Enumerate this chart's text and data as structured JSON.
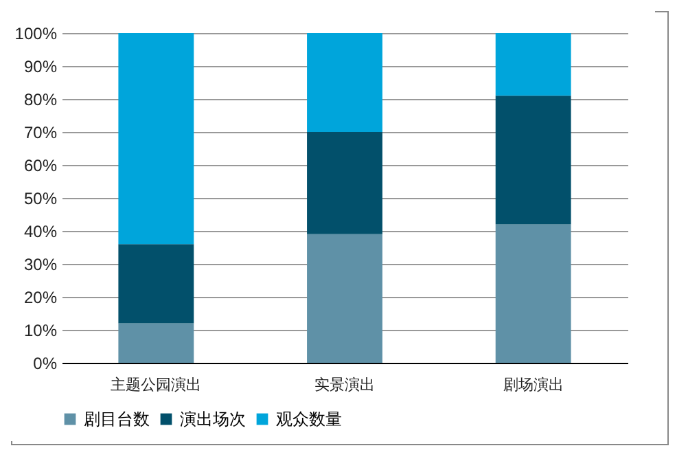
{
  "chart_data": {
    "type": "bar",
    "stacked": true,
    "categories": [
      "主题公园演出",
      "实景演出",
      "剧场演出"
    ],
    "series": [
      {
        "name": "剧目台数",
        "color": "#5f91a7",
        "values": [
          12,
          39,
          42
        ]
      },
      {
        "name": "演出场次",
        "color": "#02506b",
        "values": [
          24,
          31,
          39
        ]
      },
      {
        "name": "观众数量",
        "color": "#00a5db",
        "values": [
          64,
          30,
          19
        ]
      }
    ],
    "ylim": [
      0,
      100
    ],
    "yticks": [
      {
        "value": 0,
        "label": "0%"
      },
      {
        "value": 10,
        "label": "10%"
      },
      {
        "value": 20,
        "label": "20%"
      },
      {
        "value": 30,
        "label": "30%"
      },
      {
        "value": 40,
        "label": "40%"
      },
      {
        "value": 50,
        "label": "50%"
      },
      {
        "value": 60,
        "label": "60%"
      },
      {
        "value": 70,
        "label": "70%"
      },
      {
        "value": 80,
        "label": "80%"
      },
      {
        "value": 90,
        "label": "90%"
      },
      {
        "value": 100,
        "label": "100%"
      }
    ],
    "grid": "y",
    "legend": "bottom"
  }
}
